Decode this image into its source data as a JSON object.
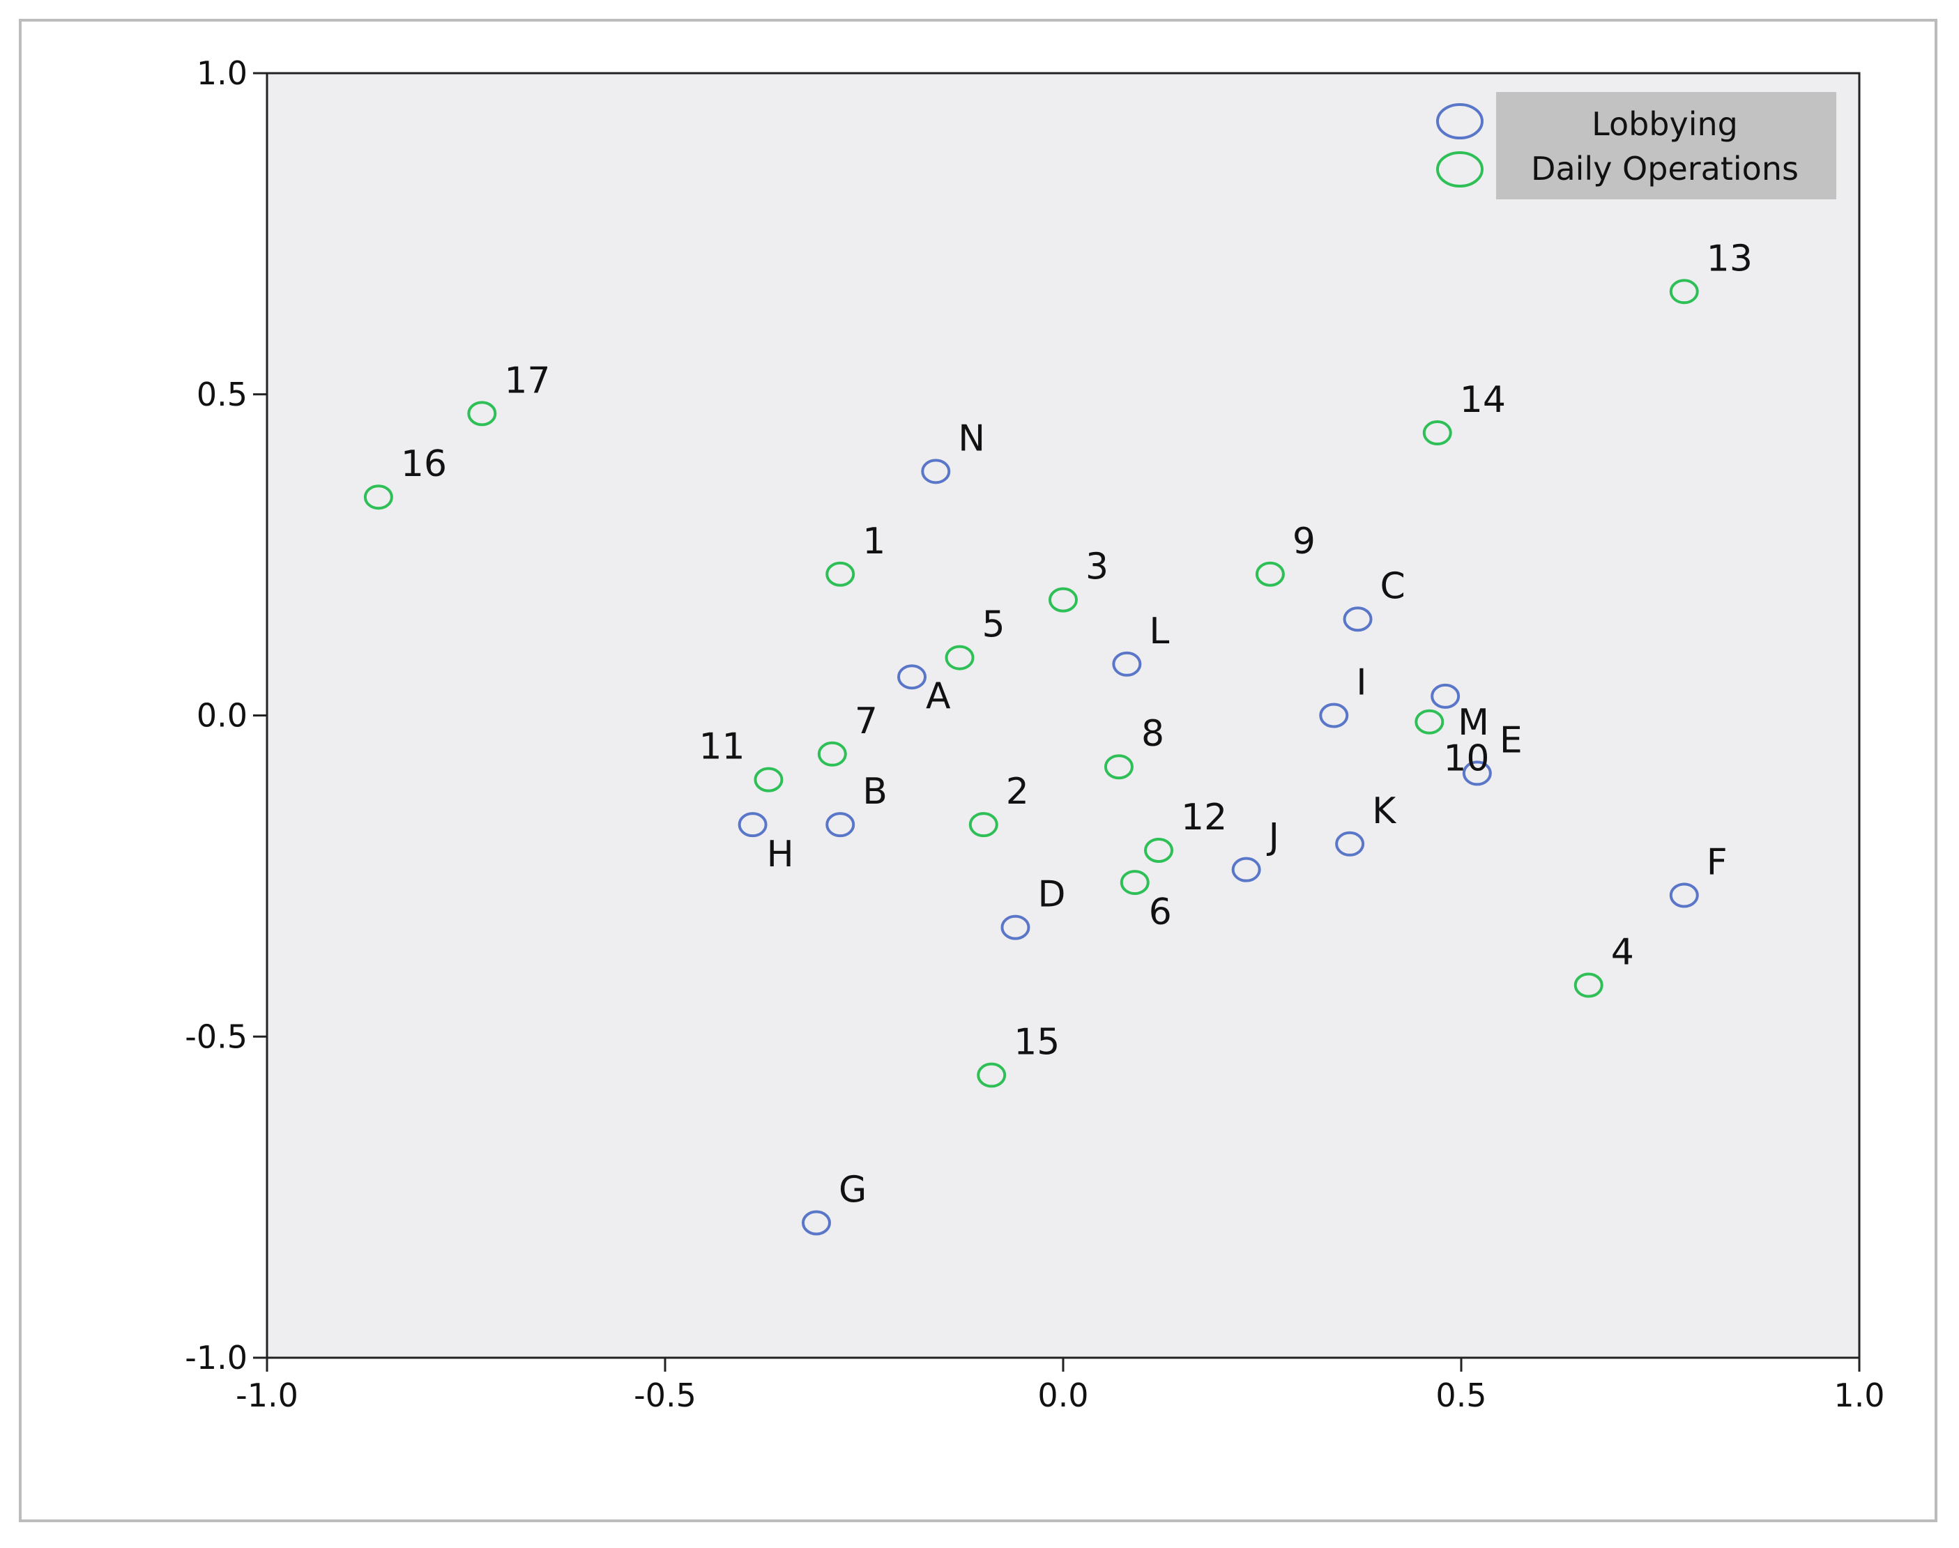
{
  "chart_data": {
    "type": "scatter",
    "xlim": [
      -1.0,
      1.0
    ],
    "ylim": [
      -1.0,
      1.0
    ],
    "xticks": [
      "-1.0",
      "-0.5",
      "0.0",
      "0.5",
      "1.0"
    ],
    "yticks": [
      "-1.0",
      "-0.5",
      "0.0",
      "0.5",
      "1.0"
    ],
    "grid": false,
    "legend_position": "top-right",
    "series": [
      {
        "name": "Lobbying",
        "color": "#5a76c8",
        "points": [
          {
            "label": "A",
            "x": -0.19,
            "y": 0.06
          },
          {
            "label": "B",
            "x": -0.28,
            "y": -0.17
          },
          {
            "label": "C",
            "x": 0.37,
            "y": 0.15
          },
          {
            "label": "D",
            "x": -0.06,
            "y": -0.33
          },
          {
            "label": "E",
            "x": 0.52,
            "y": -0.09
          },
          {
            "label": "F",
            "x": 0.78,
            "y": -0.28
          },
          {
            "label": "G",
            "x": -0.31,
            "y": -0.79
          },
          {
            "label": "H",
            "x": -0.39,
            "y": -0.17
          },
          {
            "label": "I",
            "x": 0.34,
            "y": 0.0
          },
          {
            "label": "J",
            "x": 0.23,
            "y": -0.24
          },
          {
            "label": "K",
            "x": 0.36,
            "y": -0.2
          },
          {
            "label": "L",
            "x": 0.08,
            "y": 0.08
          },
          {
            "label": "M",
            "x": 0.48,
            "y": 0.03
          },
          {
            "label": "N",
            "x": -0.16,
            "y": 0.38
          }
        ]
      },
      {
        "name": "Daily Operations",
        "color": "#2fbf57",
        "points": [
          {
            "label": "1",
            "x": -0.28,
            "y": 0.22
          },
          {
            "label": "2",
            "x": -0.1,
            "y": -0.17
          },
          {
            "label": "3",
            "x": 0.0,
            "y": 0.18
          },
          {
            "label": "4",
            "x": 0.66,
            "y": -0.42
          },
          {
            "label": "5",
            "x": -0.13,
            "y": 0.09
          },
          {
            "label": "6",
            "x": 0.09,
            "y": -0.26
          },
          {
            "label": "7",
            "x": -0.29,
            "y": -0.06
          },
          {
            "label": "8",
            "x": 0.07,
            "y": -0.08
          },
          {
            "label": "9",
            "x": 0.26,
            "y": 0.22
          },
          {
            "label": "10",
            "x": 0.46,
            "y": -0.01
          },
          {
            "label": "11",
            "x": -0.37,
            "y": -0.1
          },
          {
            "label": "12",
            "x": 0.12,
            "y": -0.21
          },
          {
            "label": "13",
            "x": 0.78,
            "y": 0.66
          },
          {
            "label": "14",
            "x": 0.47,
            "y": 0.44
          },
          {
            "label": "15",
            "x": -0.09,
            "y": -0.56
          },
          {
            "label": "16",
            "x": -0.86,
            "y": 0.34
          },
          {
            "label": "17",
            "x": -0.73,
            "y": 0.47
          }
        ]
      }
    ]
  }
}
